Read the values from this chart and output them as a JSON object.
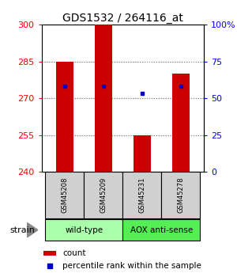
{
  "title": "GDS1532 / 264116_at",
  "samples": [
    "GSM45208",
    "GSM45209",
    "GSM45231",
    "GSM45278"
  ],
  "count_values": [
    285,
    300,
    255,
    280
  ],
  "percentile_values": [
    275,
    275,
    272,
    275
  ],
  "y_min": 240,
  "y_max": 300,
  "y_ticks": [
    240,
    255,
    270,
    285,
    300
  ],
  "right_y_ticks": [
    0,
    25,
    50,
    75,
    100
  ],
  "bar_color": "#cc0000",
  "dot_color": "#0000cc",
  "bar_width": 0.45,
  "groups": [
    {
      "label": "wild-type",
      "indices": [
        0,
        1
      ],
      "color": "#aaffaa"
    },
    {
      "label": "AOX anti-sense",
      "indices": [
        2,
        3
      ],
      "color": "#55ee55"
    }
  ],
  "strain_label": "strain",
  "legend_count_label": "count",
  "legend_percentile_label": "percentile rank within the sample",
  "grid_color": "#888888",
  "background_color": "#ffffff",
  "title_fontsize": 10,
  "tick_fontsize": 8,
  "sample_fontsize": 6,
  "group_fontsize": 7.5,
  "legend_fontsize": 7.5
}
